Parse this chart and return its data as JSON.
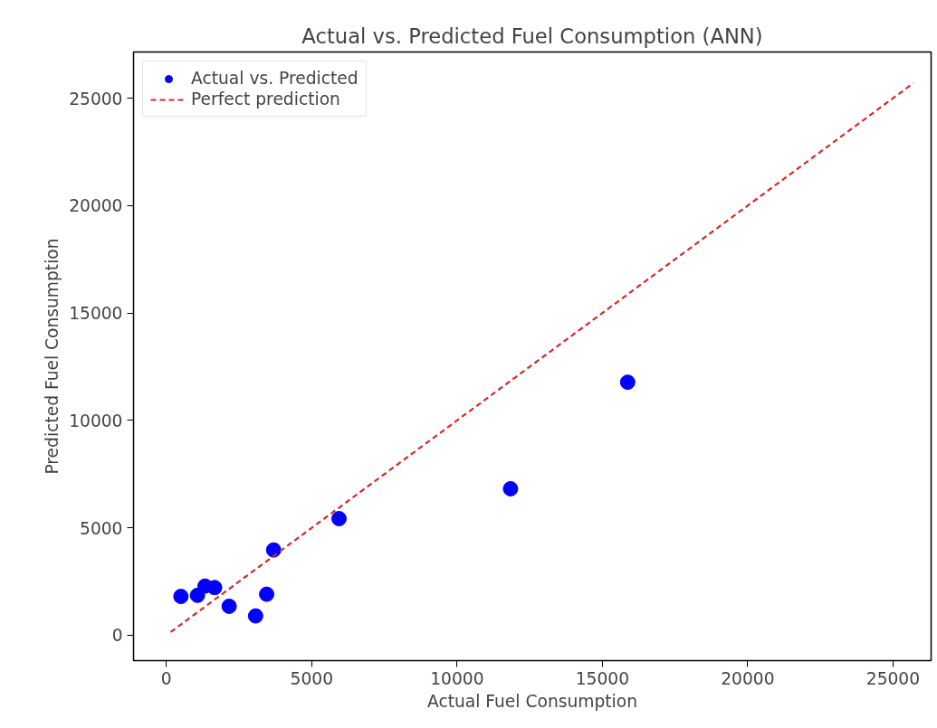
{
  "chart_data": {
    "type": "scatter",
    "title": "Actual vs. Predicted Fuel Consumption (ANN)",
    "xlabel": "Actual Fuel Consumption",
    "ylabel": "Predicted Fuel Consumption",
    "series": [
      {
        "name": "Actual vs. Predicted",
        "marker": "circle",
        "color": "#0000ff",
        "x": [
          500,
          1070,
          1330,
          1660,
          2160,
          3070,
          3450,
          3690,
          5940,
          11840,
          15870
        ],
        "values": [
          1810,
          1860,
          2290,
          2220,
          1350,
          900,
          1910,
          3970,
          5430,
          6820,
          11780
        ]
      },
      {
        "name": "Perfect prediction",
        "type": "line",
        "line_style": "dashed",
        "color": "#d62728",
        "x": [
          150,
          25700
        ],
        "values": [
          150,
          25700
        ]
      }
    ],
    "xlim": [
      -1130,
      26310
    ],
    "ylim": [
      -1180,
      27150
    ],
    "xticks": [
      0,
      5000,
      10000,
      15000,
      20000,
      25000
    ],
    "yticks": [
      0,
      5000,
      10000,
      15000,
      20000,
      25000
    ],
    "grid": false,
    "legend": "top left"
  }
}
